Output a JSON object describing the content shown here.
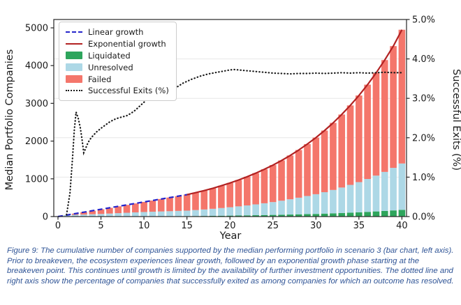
{
  "figure": {
    "caption": "Figure 9: The cumulative number of companies supported by the median performing portfolio in scenario 3 (bar chart, left axis). Prior to breakeven, the ecosystem experiences linear growth, followed by an exponential growth phase starting at the breakeven point. This continues until growth is limited by the availability of further investment opportunities. The dotted line and right axis show the percentage of companies that successfully exited as among companies for which an outcome has resolved."
  },
  "chart_data": {
    "type": "bar",
    "subtype": "stacked-bars-with-line-overlays",
    "xlabel": "Year",
    "ylabel_left": "Median Portfolio Companies",
    "ylabel_right": "Successful Exits (%)",
    "xlim": [
      -0.5,
      40.6
    ],
    "ylim_left": [
      0,
      5230
    ],
    "ylim_right": [
      0,
      5.0
    ],
    "grid": "horizontal-right-axis-ticks",
    "legend_position": "upper-left",
    "x_ticks": [
      0,
      5,
      10,
      15,
      20,
      25,
      30,
      35,
      40
    ],
    "y_left_ticks": [
      "0",
      "1000",
      "2000",
      "3000",
      "4000",
      "5000"
    ],
    "y_right_ticks": [
      "0.0%",
      "1.0%",
      "2.0%",
      "3.0%",
      "4.0%",
      "5.0%"
    ],
    "years": [
      1,
      2,
      3,
      4,
      5,
      6,
      7,
      8,
      9,
      10,
      11,
      12,
      13,
      14,
      15,
      16,
      17,
      18,
      19,
      20,
      21,
      22,
      23,
      24,
      25,
      26,
      27,
      28,
      29,
      30,
      31,
      32,
      33,
      34,
      35,
      36,
      37,
      38,
      39,
      40
    ],
    "series": [
      {
        "name": "Liquidated",
        "color": "#2ea55c",
        "values": [
          0,
          1,
          1,
          2,
          2,
          3,
          4,
          5,
          6,
          7,
          8,
          9,
          10,
          11,
          12,
          14,
          16,
          19,
          22,
          25,
          28,
          32,
          36,
          40,
          44,
          49,
          54,
          60,
          66,
          70,
          78,
          86,
          95,
          104,
          113,
          124,
          136,
          149,
          163,
          178
        ]
      },
      {
        "name": "Unresolved",
        "color": "#add8e6",
        "values": [
          36,
          45,
          52,
          60,
          67,
          77,
          87,
          96,
          105,
          114,
          120,
          126,
          132,
          139,
          145,
          158,
          172,
          187,
          204,
          222,
          242,
          263,
          287,
          312,
          340,
          371,
          404,
          440,
          479,
          522,
          568,
          619,
          674,
          735,
          800,
          872,
          949,
          1034,
          1127,
          1228
        ]
      },
      {
        "name": "Failed",
        "color": "#f4766b",
        "values": [
          3,
          31,
          63,
          93,
          124,
          152,
          180,
          208,
          237,
          266,
          297,
          329,
          361,
          391,
          423,
          460,
          500,
          544,
          591,
          643,
          699,
          760,
          827,
          900,
          980,
          1066,
          1160,
          1263,
          1375,
          1500,
          1633,
          1777,
          1935,
          2106,
          2295,
          2499,
          2722,
          2964,
          3227,
          3544
        ]
      }
    ],
    "lines": {
      "linear_growth": {
        "label": "Linear growth",
        "color": "#2525cb",
        "style": "dashed",
        "points": [
          [
            0,
            0
          ],
          [
            15.5,
            600
          ]
        ]
      },
      "exponential_growth": {
        "label": "Exponential growth",
        "color": "#b22222",
        "style": "solid",
        "from_year": 15,
        "note": "follows stacked bar totals from breakeven year 15 to year 40"
      },
      "successful_exits_pct": {
        "label": "Successful Exits (%)",
        "color": "#1a1a1a",
        "style": "dotted",
        "axis": "right",
        "points": [
          [
            1,
            0.05
          ],
          [
            1.4,
            0.6
          ],
          [
            1.7,
            1.5
          ],
          [
            1.9,
            2.2
          ],
          [
            2.1,
            2.65
          ],
          [
            2.35,
            2.5
          ],
          [
            2.6,
            2.25
          ],
          [
            2.8,
            1.95
          ],
          [
            3,
            1.62
          ],
          [
            3.2,
            1.72
          ],
          [
            3.5,
            1.88
          ],
          [
            3.8,
            1.98
          ],
          [
            4.1,
            2.06
          ],
          [
            4.5,
            2.15
          ],
          [
            5,
            2.24
          ],
          [
            5.5,
            2.32
          ],
          [
            6,
            2.4
          ],
          [
            6.5,
            2.46
          ],
          [
            7,
            2.5
          ],
          [
            7.5,
            2.53
          ],
          [
            8,
            2.56
          ],
          [
            8.5,
            2.62
          ],
          [
            9,
            2.7
          ],
          [
            9.5,
            2.8
          ],
          [
            10,
            2.9
          ],
          [
            10.4,
            3.0
          ],
          [
            10.8,
            3.07
          ],
          [
            11.2,
            3.1
          ],
          [
            11.6,
            3.05
          ],
          [
            12,
            3.02
          ],
          [
            12.4,
            3.06
          ],
          [
            12.8,
            3.12
          ],
          [
            13.2,
            3.18
          ],
          [
            13.6,
            3.25
          ],
          [
            14,
            3.31
          ],
          [
            14.5,
            3.38
          ],
          [
            15,
            3.43
          ],
          [
            15.5,
            3.48
          ],
          [
            16,
            3.52
          ],
          [
            16.5,
            3.56
          ],
          [
            17,
            3.59
          ],
          [
            17.5,
            3.62
          ],
          [
            18,
            3.64
          ],
          [
            18.5,
            3.66
          ],
          [
            19,
            3.68
          ],
          [
            19.5,
            3.7
          ],
          [
            20,
            3.72
          ],
          [
            20.5,
            3.73
          ],
          [
            21,
            3.72
          ],
          [
            21.5,
            3.71
          ],
          [
            22,
            3.7
          ],
          [
            22.5,
            3.69
          ],
          [
            23,
            3.68
          ],
          [
            23.5,
            3.67
          ],
          [
            24,
            3.66
          ],
          [
            24.5,
            3.65
          ],
          [
            25,
            3.64
          ],
          [
            26,
            3.63
          ],
          [
            27,
            3.62
          ],
          [
            28,
            3.63
          ],
          [
            29,
            3.63
          ],
          [
            30,
            3.64
          ],
          [
            31,
            3.63
          ],
          [
            32,
            3.64
          ],
          [
            33,
            3.65
          ],
          [
            34,
            3.64
          ],
          [
            35,
            3.65
          ],
          [
            36,
            3.64
          ],
          [
            37,
            3.65
          ],
          [
            38,
            3.66
          ],
          [
            39,
            3.65
          ],
          [
            40,
            3.65
          ]
        ]
      }
    },
    "legend": [
      {
        "label": "Linear growth",
        "swatch": "dashed-line",
        "color": "#2525cb"
      },
      {
        "label": "Exponential growth",
        "swatch": "solid-line",
        "color": "#b22222"
      },
      {
        "label": "Liquidated",
        "swatch": "patch",
        "color": "#2ea55c"
      },
      {
        "label": "Unresolved",
        "swatch": "patch",
        "color": "#add8e6"
      },
      {
        "label": "Failed",
        "swatch": "patch",
        "color": "#f4766b"
      },
      {
        "label": "Successful Exits (%)",
        "swatch": "dotted-line",
        "color": "#1a1a1a"
      }
    ],
    "colors": {
      "grid": "#e7e7e7",
      "spine": "#262626",
      "caption_text": "#2f5496"
    }
  }
}
